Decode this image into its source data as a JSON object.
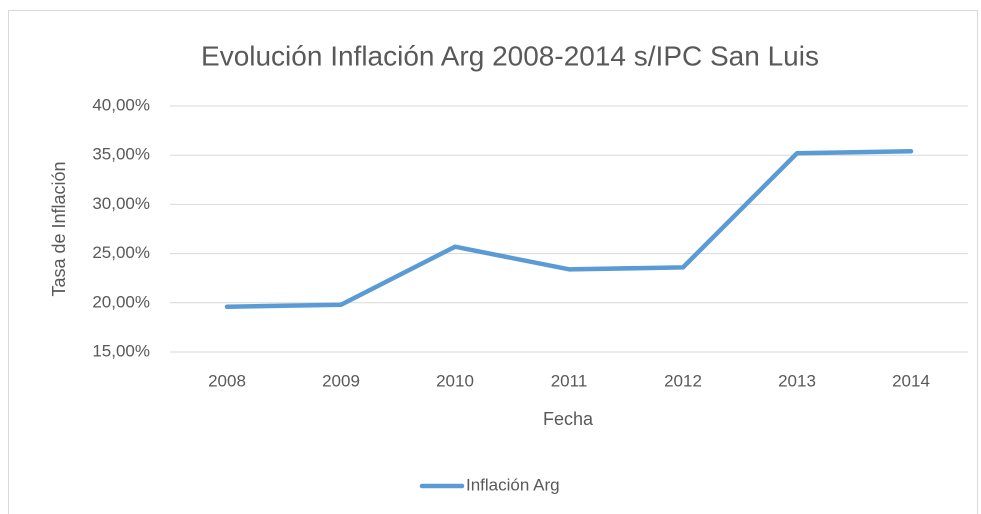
{
  "chart_data": {
    "type": "line",
    "title": "Evolución Inflación Arg 2008-2014 s/IPC San Luis",
    "x_label": "Fecha",
    "y_label": "Tasa de Inflación",
    "categories": [
      "2008",
      "2009",
      "2010",
      "2011",
      "2012",
      "2013",
      "2014"
    ],
    "series": [
      {
        "name": "Inflación Arg",
        "color": "#5b9bd5",
        "values": [
          19.6,
          19.8,
          25.7,
          23.4,
          23.6,
          35.2,
          35.4
        ]
      }
    ],
    "ylim": [
      15,
      40
    ],
    "yticks": [
      {
        "value": 15,
        "label": "15,00%"
      },
      {
        "value": 20,
        "label": "20,00%"
      },
      {
        "value": 25,
        "label": "25,00%"
      },
      {
        "value": 30,
        "label": "30,00%"
      },
      {
        "value": 35,
        "label": "35,00%"
      },
      {
        "value": 40,
        "label": "40,00%"
      }
    ],
    "grid": true,
    "legend": "bottom"
  }
}
